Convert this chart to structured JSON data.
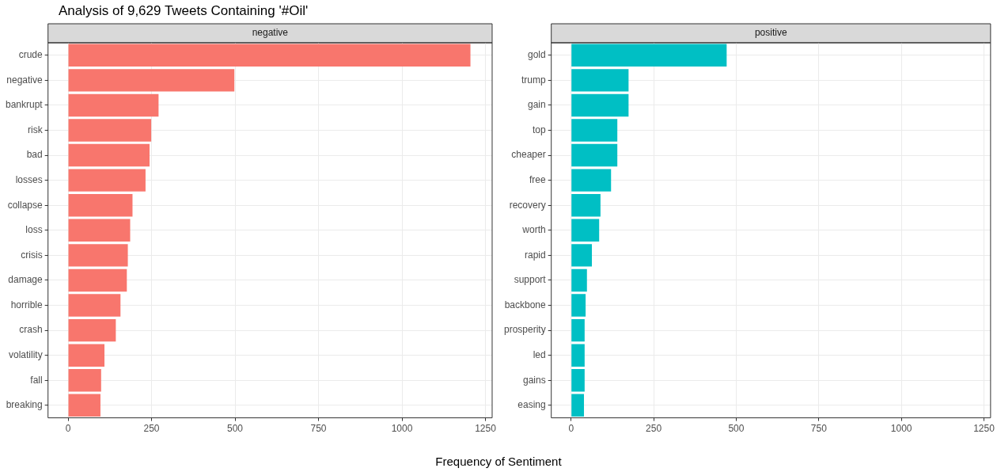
{
  "chart_data": [
    {
      "type": "bar",
      "orientation": "horizontal",
      "title": "Analysis of 9,629 Tweets Containing '#Oil'",
      "subtitle": "negative",
      "xlabel": "Frequency of Sentiment",
      "color": "#f8766d",
      "grid": true,
      "categories": [
        "crude",
        "negative",
        "bankrupt",
        "risk",
        "bad",
        "losses",
        "collapse",
        "loss",
        "crisis",
        "damage",
        "horrible",
        "crash",
        "volatility",
        "fall",
        "breaking"
      ],
      "values": [
        1205,
        498,
        271,
        249,
        244,
        232,
        193,
        186,
        179,
        176,
        157,
        143,
        109,
        99,
        97
      ],
      "xlim": [
        -60,
        1270
      ],
      "xticks": [
        0,
        250,
        500,
        750,
        1000,
        1250
      ]
    },
    {
      "type": "bar",
      "orientation": "horizontal",
      "subtitle": "positive",
      "color": "#00bfc4",
      "grid": true,
      "categories": [
        "gold",
        "trump",
        "gain",
        "top",
        "cheaper",
        "free",
        "recovery",
        "worth",
        "rapid",
        "support",
        "backbone",
        "prosperity",
        "led",
        "gains",
        "easing"
      ],
      "values": [
        471,
        174,
        174,
        140,
        140,
        121,
        89,
        85,
        63,
        48,
        44,
        41,
        41,
        41,
        39
      ],
      "xlim": [
        -60,
        1270
      ],
      "xticks": [
        0,
        250,
        500,
        750,
        1000,
        1250
      ]
    }
  ]
}
